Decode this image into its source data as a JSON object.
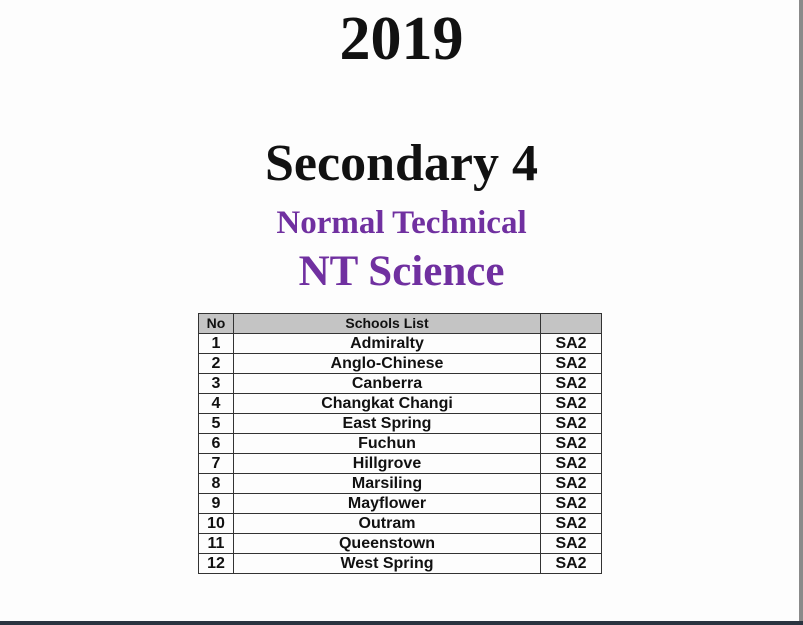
{
  "title": {
    "year": "2019",
    "grade": "Secondary 4",
    "stream": "Normal Technical",
    "subject": "NT Science"
  },
  "table": {
    "headers": [
      "No",
      "Schools List",
      ""
    ],
    "rows": [
      [
        "1",
        "Admiralty",
        "SA2"
      ],
      [
        "2",
        "Anglo-Chinese",
        "SA2"
      ],
      [
        "3",
        "Canberra",
        "SA2"
      ],
      [
        "4",
        "Changkat Changi",
        "SA2"
      ],
      [
        "5",
        "East Spring",
        "SA2"
      ],
      [
        "6",
        "Fuchun",
        "SA2"
      ],
      [
        "7",
        "Hillgrove",
        "SA2"
      ],
      [
        "8",
        "Marsiling",
        "SA2"
      ],
      [
        "9",
        "Mayflower",
        "SA2"
      ],
      [
        "10",
        "Outram",
        "SA2"
      ],
      [
        "11",
        "Queenstown",
        "SA2"
      ],
      [
        "12",
        "West Spring",
        "SA2"
      ]
    ]
  },
  "colors": {
    "accent": "#7030a0",
    "header_bg": "#c4c4c4"
  }
}
